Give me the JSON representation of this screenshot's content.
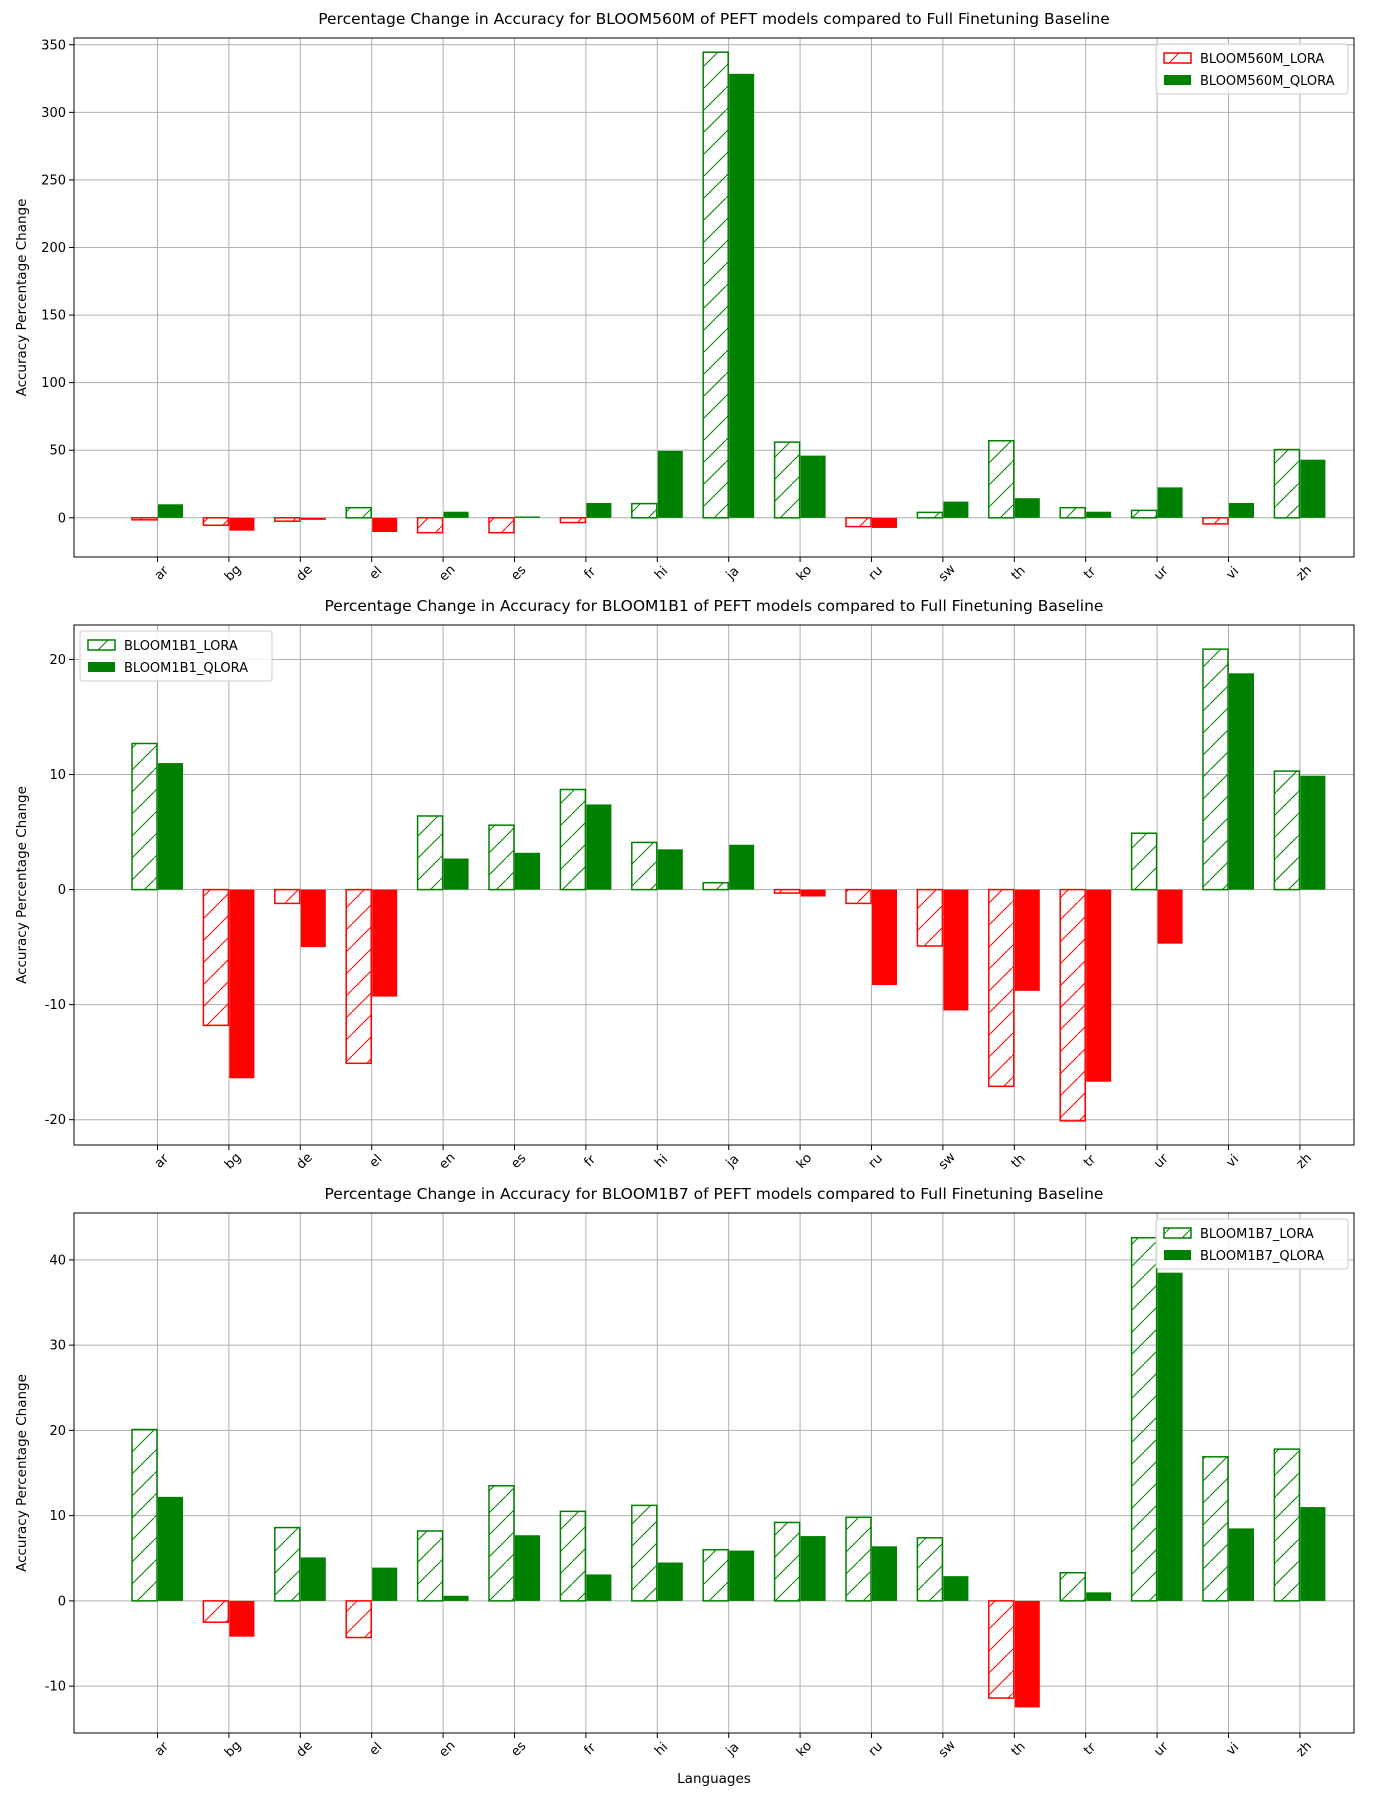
{
  "colors": {
    "positive": "#008000",
    "negative": "#ff0000",
    "grid": "#b0b0b0",
    "zero": "#a0a0a0"
  },
  "chart_data": [
    {
      "type": "bar",
      "title": "Percentage Change in Accuracy for BLOOM560M of PEFT models compared to Full Finetuning Baseline",
      "xlabel": "",
      "ylabel": "Accuracy Percentage Change",
      "ylim": [
        -29,
        355
      ],
      "yticks": [
        0,
        50,
        100,
        150,
        200,
        250,
        300,
        350
      ],
      "grid": true,
      "legend": "top-right",
      "categories": [
        "ar",
        "bg",
        "de",
        "el",
        "en",
        "es",
        "fr",
        "hi",
        "ja",
        "ko",
        "ru",
        "sw",
        "th",
        "tr",
        "ur",
        "vi",
        "zh"
      ],
      "series": [
        {
          "name": "BLOOM560M_LORA",
          "style": "hatched",
          "legend_color": "#ff0000",
          "values": [
            -1.5,
            -5.5,
            -2.5,
            7.5,
            -11,
            -11,
            -3.5,
            10.5,
            344.5,
            56,
            -6.5,
            4,
            57,
            7.5,
            5.5,
            -4.5,
            50.5
          ]
        },
        {
          "name": "BLOOM560M_QLORA",
          "style": "solid",
          "legend_color": "#008000",
          "values": [
            10,
            -9.5,
            -1.5,
            -10.5,
            4.5,
            1,
            11,
            49.5,
            328.5,
            46,
            -7.5,
            12,
            14.5,
            4.5,
            22.5,
            11,
            43
          ]
        }
      ]
    },
    {
      "type": "bar",
      "title": "Percentage Change in Accuracy for BLOOM1B1 of PEFT models compared to Full Finetuning Baseline",
      "xlabel": "",
      "ylabel": "Accuracy Percentage Change",
      "ylim": [
        -22.2,
        23
      ],
      "yticks": [
        -20,
        -10,
        0,
        10,
        20
      ],
      "grid": true,
      "legend": "top-left",
      "categories": [
        "ar",
        "bg",
        "de",
        "el",
        "en",
        "es",
        "fr",
        "hi",
        "ja",
        "ko",
        "ru",
        "sw",
        "th",
        "tr",
        "ur",
        "vi",
        "zh"
      ],
      "series": [
        {
          "name": "BLOOM1B1_LORA",
          "style": "hatched",
          "legend_color": "#008000",
          "values": [
            12.7,
            -11.8,
            -1.2,
            -15.1,
            6.4,
            5.6,
            8.7,
            4.1,
            0.6,
            -0.3,
            -1.2,
            -4.9,
            -17.1,
            -20.1,
            4.9,
            20.9,
            10.3
          ]
        },
        {
          "name": "BLOOM1B1_QLORA",
          "style": "solid",
          "legend_color": "#008000",
          "values": [
            11.0,
            -16.4,
            -5.0,
            -9.3,
            2.7,
            3.2,
            7.4,
            3.5,
            3.9,
            -0.6,
            -8.3,
            -10.5,
            -8.8,
            -16.7,
            -4.7,
            18.8,
            9.9
          ]
        }
      ]
    },
    {
      "type": "bar",
      "title": "Percentage Change in Accuracy for BLOOM1B7 of PEFT models compared to Full Finetuning Baseline",
      "xlabel": "Languages",
      "ylabel": "Accuracy Percentage Change",
      "ylim": [
        -15.5,
        45.5
      ],
      "yticks": [
        -10,
        0,
        10,
        20,
        30,
        40
      ],
      "grid": true,
      "legend": "top-right",
      "categories": [
        "ar",
        "bg",
        "de",
        "el",
        "en",
        "es",
        "fr",
        "hi",
        "ja",
        "ko",
        "ru",
        "sw",
        "th",
        "tr",
        "ur",
        "vi",
        "zh"
      ],
      "series": [
        {
          "name": "BLOOM1B7_LORA",
          "style": "hatched",
          "legend_color": "#008000",
          "values": [
            20.1,
            -2.5,
            8.6,
            -4.3,
            8.2,
            13.5,
            10.5,
            11.2,
            6.0,
            9.2,
            9.8,
            7.4,
            -11.4,
            3.3,
            42.6,
            16.9,
            17.8
          ]
        },
        {
          "name": "BLOOM1B7_QLORA",
          "style": "solid",
          "legend_color": "#008000",
          "values": [
            12.2,
            -4.2,
            5.1,
            3.9,
            0.6,
            7.7,
            3.1,
            4.5,
            5.9,
            7.6,
            6.4,
            2.9,
            -12.5,
            1.0,
            38.5,
            8.5,
            11.0
          ]
        }
      ]
    }
  ]
}
